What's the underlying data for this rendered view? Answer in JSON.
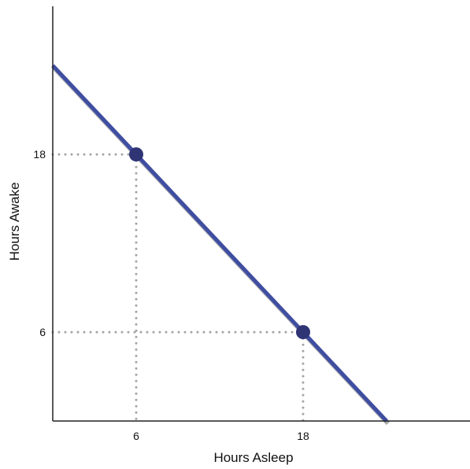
{
  "chart_data": {
    "type": "line",
    "xlabel": "Hours Asleep",
    "ylabel": "Hours Awake",
    "xlim": [
      0,
      30
    ],
    "ylim": [
      0,
      28
    ],
    "x_ticks": [
      6,
      18
    ],
    "y_ticks": [
      6,
      18
    ],
    "grid": false,
    "series": [
      {
        "x": [
          0,
          24
        ],
        "y": [
          24,
          0
        ]
      }
    ],
    "highlighted_points": [
      {
        "x": 6,
        "y": 18
      },
      {
        "x": 18,
        "y": 6
      }
    ],
    "reference_lines": "dotted guides from each highlighted point to both axes",
    "colors": {
      "line": "#3f4ea1",
      "line_shadow": "#a9a9ad",
      "point": "#2f3475",
      "guide": "#a4a4a4",
      "axis": "#222222"
    }
  }
}
